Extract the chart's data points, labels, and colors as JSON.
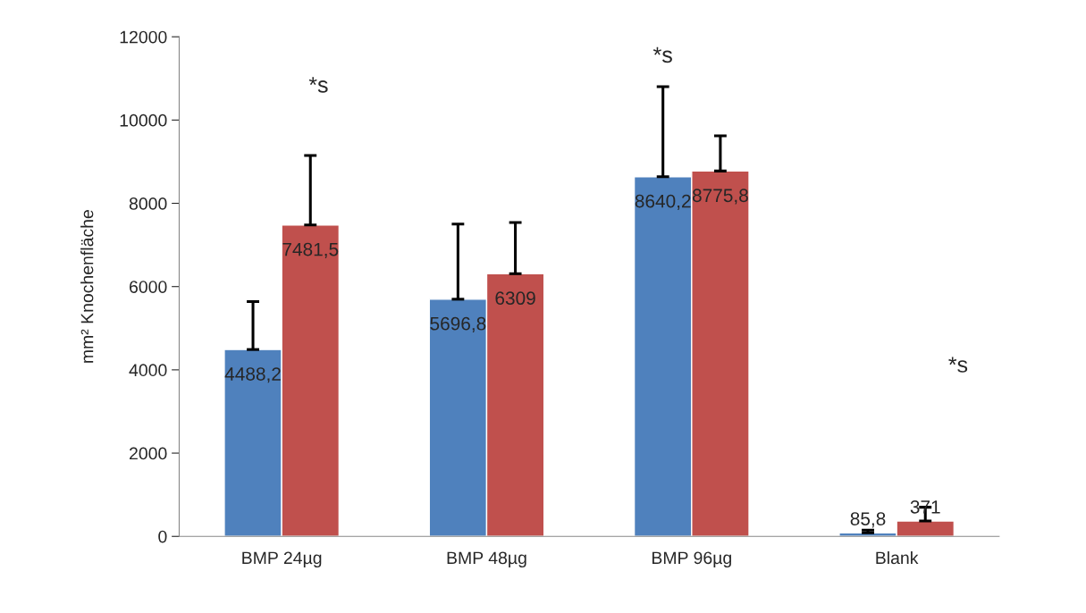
{
  "chart_data": {
    "type": "bar",
    "ylabel": "mm² Knochenfläche",
    "categories": [
      "BMP 24µg",
      "BMP 48µg",
      "BMP 96µg",
      "Blank"
    ],
    "series": [
      {
        "color": "#4f81bd",
        "values": [
          4488.2,
          5696.8,
          8640.2,
          85.8
        ],
        "value_labels": [
          "4488,2",
          "5696,8",
          "8640,2",
          "85,8"
        ],
        "errors": [
          [
            4488.2,
            5640
          ],
          [
            5696.8,
            7500
          ],
          [
            8640.2,
            10800
          ],
          [
            85.8,
            150
          ]
        ]
      },
      {
        "color": "#c0504d",
        "values": [
          7481.5,
          6309,
          8775.8,
          371
        ],
        "value_labels": [
          "7481,5",
          "6309",
          "8775,8",
          "371"
        ],
        "errors": [
          [
            7481.5,
            9150
          ],
          [
            6309,
            7540
          ],
          [
            8775.8,
            9620
          ],
          [
            371,
            700
          ]
        ]
      }
    ],
    "ylim": [
      0,
      12000
    ],
    "yticks": [
      0,
      2000,
      4000,
      6000,
      8000,
      10000,
      12000
    ],
    "annotations": [
      "*s",
      "*s",
      "*s"
    ],
    "grid": false
  }
}
